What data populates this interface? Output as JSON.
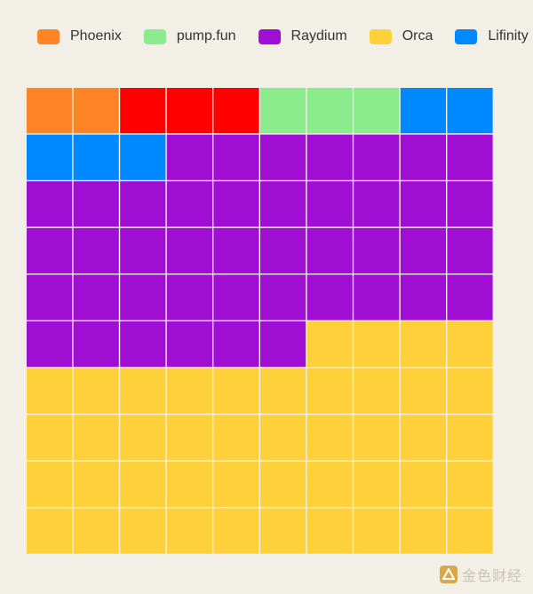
{
  "watermark": "金色财经",
  "chart_data": {
    "type": "waffle",
    "title": "",
    "rows": 10,
    "cols": 10,
    "categories": [
      {
        "name": "Phoenix",
        "value": 2,
        "color": "#fe8426"
      },
      {
        "name": "Red",
        "value": 3,
        "color": "#ff0000",
        "in_legend": false
      },
      {
        "name": "pump.fun",
        "value": 3,
        "color": "#8aec8c"
      },
      {
        "name": "Lifinity",
        "value": 5,
        "color": "#0088ff"
      },
      {
        "name": "Raydium",
        "value": 43,
        "color": "#a10ed3"
      },
      {
        "name": "Orca",
        "value": 44,
        "color": "#fed13b"
      }
    ],
    "legend_order": [
      "Phoenix",
      "pump.fun",
      "Raydium",
      "Orca",
      "Lifinity"
    ],
    "legend_position": "top"
  }
}
